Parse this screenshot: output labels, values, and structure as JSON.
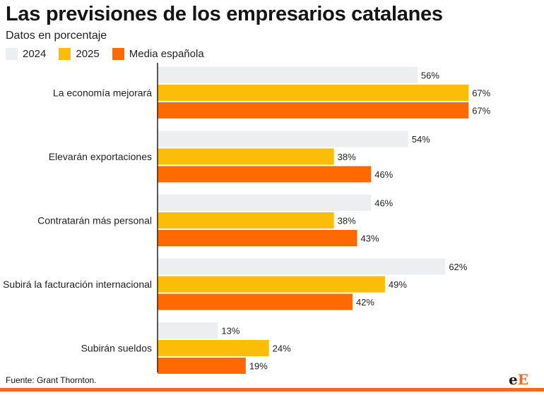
{
  "header": {
    "title": "Las previsiones de los empresarios catalanes",
    "subtitle": "Datos en porcentaje"
  },
  "colors": {
    "s2024": "#eceef0",
    "s2025": "#fbbd08",
    "media": "#ff6a00",
    "axis": "#222222",
    "brand": "#f26a21"
  },
  "chart_data": {
    "type": "bar",
    "orientation": "horizontal",
    "title": "Las previsiones de los empresarios catalanes",
    "subtitle": "Datos en porcentaje",
    "categories": [
      "La economía mejorará",
      "Elevarán exportaciones",
      "Contratarán más personal",
      "Subirá la facturación internacional",
      "Subirán sueldos"
    ],
    "series": [
      {
        "name": "2024",
        "values": [
          56,
          54,
          46,
          62,
          13
        ],
        "color": "#eceef0"
      },
      {
        "name": "2025",
        "values": [
          67,
          38,
          38,
          49,
          24
        ],
        "color": "#fbbd08"
      },
      {
        "name": "Media española",
        "values": [
          67,
          46,
          43,
          42,
          19
        ],
        "color": "#ff6a00"
      }
    ],
    "value_suffix": "%",
    "xlim": [
      0,
      100
    ],
    "grid": false,
    "legend": "top-left"
  },
  "footer": {
    "source": "Fuente: Grant Thornton.",
    "logo_part1": "e",
    "logo_part2": "E"
  }
}
